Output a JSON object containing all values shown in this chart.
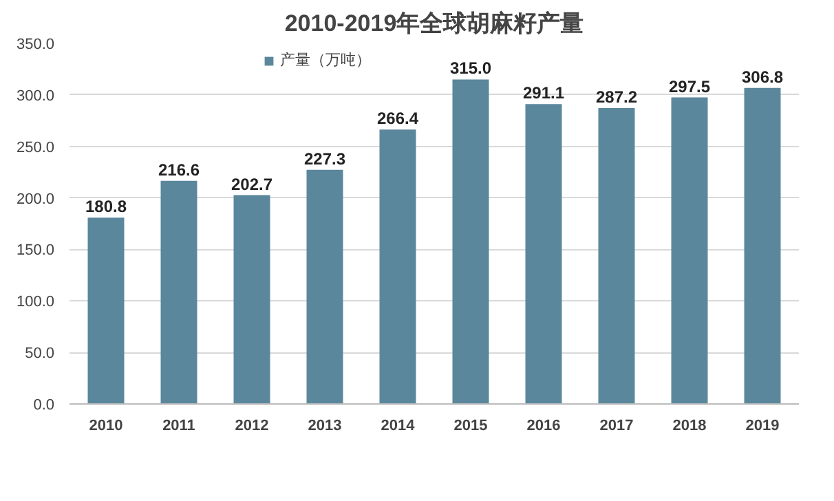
{
  "chart_data": {
    "type": "bar",
    "title": "2010-2019年全球胡麻籽产量",
    "categories": [
      "2010",
      "2011",
      "2012",
      "2013",
      "2014",
      "2015",
      "2016",
      "2017",
      "2018",
      "2019"
    ],
    "series": [
      {
        "name": "产量（万吨）",
        "color": "#5b879c",
        "values": [
          180.8,
          216.6,
          202.7,
          227.3,
          266.4,
          315.0,
          291.1,
          287.2,
          297.5,
          306.8
        ],
        "value_labels": [
          "180.8",
          "216.6",
          "202.7",
          "227.3",
          "266.4",
          "315.0",
          "291.1",
          "287.2",
          "297.5",
          "306.8"
        ]
      }
    ],
    "ylim": [
      0,
      350
    ],
    "yticks": [
      {
        "value": 0,
        "label": "0.0"
      },
      {
        "value": 50,
        "label": "50.0"
      },
      {
        "value": 100,
        "label": "100.0"
      },
      {
        "value": 150,
        "label": "150.0"
      },
      {
        "value": 200,
        "label": "200.0"
      },
      {
        "value": 250,
        "label": "250.0"
      },
      {
        "value": 300,
        "label": "300.0"
      },
      {
        "value": 350,
        "label": "350.0"
      }
    ],
    "grid": "y",
    "legend": "top"
  }
}
